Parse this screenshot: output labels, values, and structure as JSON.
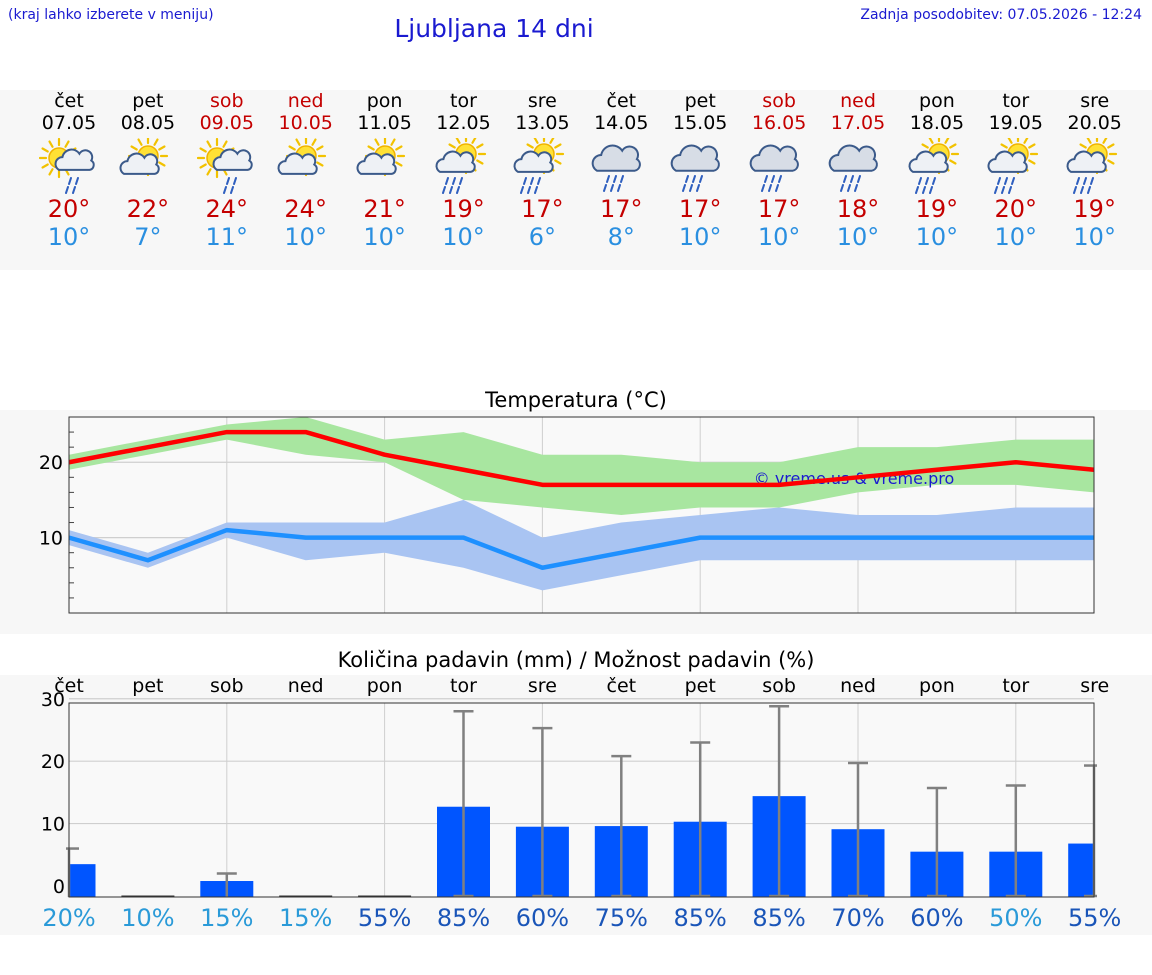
{
  "header": {
    "menu_hint": "(kraj lahko izberete v meniju)",
    "title": "Ljubljana 14 dni",
    "updated": "Zadnja posodobitev: 07.05.2026 - 12:24"
  },
  "days": [
    {
      "name": "čet",
      "date": "07.05",
      "weekend": false,
      "icon": "sun-cloud-rain-icon",
      "tmax": "20°",
      "tmin": "10°"
    },
    {
      "name": "pet",
      "date": "08.05",
      "weekend": false,
      "icon": "sun-cloud-icon",
      "tmax": "22°",
      "tmin": "7°"
    },
    {
      "name": "sob",
      "date": "09.05",
      "weekend": true,
      "icon": "sun-cloud-rain-icon",
      "tmax": "24°",
      "tmin": "11°"
    },
    {
      "name": "ned",
      "date": "10.05",
      "weekend": true,
      "icon": "sun-cloud-icon",
      "tmax": "24°",
      "tmin": "10°"
    },
    {
      "name": "pon",
      "date": "11.05",
      "weekend": false,
      "icon": "sun-cloud-icon",
      "tmax": "21°",
      "tmin": "10°"
    },
    {
      "name": "tor",
      "date": "12.05",
      "weekend": false,
      "icon": "sun-cloud-heavy-rain-icon",
      "tmax": "19°",
      "tmin": "10°"
    },
    {
      "name": "sre",
      "date": "13.05",
      "weekend": false,
      "icon": "sun-cloud-heavy-rain-icon",
      "tmax": "17°",
      "tmin": "6°"
    },
    {
      "name": "čet",
      "date": "14.05",
      "weekend": false,
      "icon": "cloud-heavy-rain-icon",
      "tmax": "17°",
      "tmin": "8°"
    },
    {
      "name": "pet",
      "date": "15.05",
      "weekend": false,
      "icon": "cloud-heavy-rain-icon",
      "tmax": "17°",
      "tmin": "10°"
    },
    {
      "name": "sob",
      "date": "16.05",
      "weekend": true,
      "icon": "cloud-heavy-rain-icon",
      "tmax": "17°",
      "tmin": "10°"
    },
    {
      "name": "ned",
      "date": "17.05",
      "weekend": true,
      "icon": "cloud-heavy-rain-icon",
      "tmax": "18°",
      "tmin": "10°"
    },
    {
      "name": "pon",
      "date": "18.05",
      "weekend": false,
      "icon": "sun-cloud-heavy-rain-icon",
      "tmax": "19°",
      "tmin": "10°"
    },
    {
      "name": "tor",
      "date": "19.05",
      "weekend": false,
      "icon": "sun-cloud-heavy-rain-icon",
      "tmax": "20°",
      "tmin": "10°"
    },
    {
      "name": "sre",
      "date": "20.05",
      "weekend": false,
      "icon": "sun-cloud-heavy-rain-icon",
      "tmax": "19°",
      "tmin": "10°"
    }
  ],
  "colors": {
    "max_line": "#ff0000",
    "max_band": "#a8e6a0",
    "min_line": "#1e90ff",
    "min_band": "#a9c4f2",
    "precip_bar": "#0055ff",
    "error_bar": "#808080",
    "title_blue": "#1a1ad0",
    "weekend_red": "#c40000"
  },
  "chart_data": [
    {
      "type": "line",
      "title": "Temperatura (°C)",
      "watermark": "© vreme.us & vreme.pro",
      "categories": [
        "07.05",
        "08.05",
        "09.05",
        "10.05",
        "11.05",
        "12.05",
        "13.05",
        "14.05",
        "15.05",
        "16.05",
        "17.05",
        "18.05",
        "19.05",
        "20.05"
      ],
      "ylim": [
        0,
        26
      ],
      "yticks": [
        10,
        20
      ],
      "grid": true,
      "series": [
        {
          "values": [
            20,
            22,
            24,
            24,
            21,
            19,
            17,
            17,
            17,
            17,
            18,
            19,
            20,
            19
          ]
        },
        {
          "values": [
            10,
            7,
            11,
            10,
            10,
            10,
            6,
            8,
            10,
            10,
            10,
            10,
            10,
            10
          ]
        }
      ],
      "bands": [
        {
          "low": [
            19,
            21,
            23,
            21,
            20,
            15,
            14,
            13,
            14,
            14,
            16,
            17,
            17,
            16
          ],
          "high": [
            21,
            23,
            25,
            26,
            23,
            24,
            21,
            21,
            20,
            20,
            22,
            22,
            23,
            23
          ]
        },
        {
          "low": [
            9,
            6,
            10,
            7,
            8,
            6,
            3,
            5,
            7,
            7,
            7,
            7,
            7,
            7
          ],
          "high": [
            11,
            8,
            12,
            12,
            12,
            15,
            10,
            12,
            13,
            14,
            13,
            13,
            14,
            14
          ]
        }
      ]
    },
    {
      "type": "bar",
      "title": "Količina padavin (mm) / Možnost padavin (%)",
      "categories": [
        "čet",
        "pet",
        "sob",
        "ned",
        "pon",
        "tor",
        "sre",
        "čet",
        "pet",
        "sob",
        "ned",
        "pon",
        "tor",
        "sre"
      ],
      "values": [
        3.5,
        0,
        0.8,
        0,
        0,
        12.7,
        9.5,
        9.6,
        10.3,
        14.4,
        9.1,
        5.5,
        5.5,
        6.8
      ],
      "error_high": [
        6,
        0,
        2,
        0,
        0,
        28,
        25.3,
        20.8,
        23,
        28.8,
        19.7,
        15.7,
        16.1,
        19.3
      ],
      "error_low": [
        0,
        0,
        0,
        0,
        0,
        0,
        0,
        0,
        0,
        0,
        0,
        0,
        0,
        0
      ],
      "probability_pct": [
        "20%",
        "10%",
        "15%",
        "15%",
        "55%",
        "85%",
        "60%",
        "75%",
        "85%",
        "85%",
        "70%",
        "60%",
        "50%",
        "55%"
      ],
      "ylim": [
        0,
        30
      ],
      "yticks": [
        0,
        10,
        20,
        30
      ],
      "grid": true
    }
  ]
}
